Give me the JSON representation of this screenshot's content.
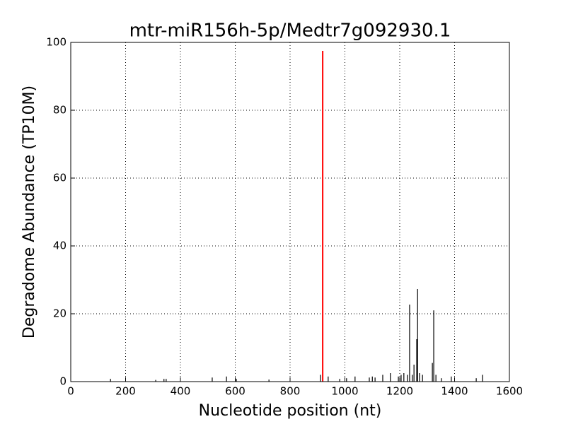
{
  "chart_data": {
    "type": "stem",
    "title": "mtr-miR156h-5p/Medtr7g092930.1",
    "x_label": "Nucleotide position (nt)",
    "y_label": "Degradome Abundance (TP10M)",
    "xlim": [
      0,
      1600
    ],
    "xticks": [
      0,
      200,
      400,
      600,
      800,
      1000,
      1200,
      1400,
      1600
    ],
    "ylim": [
      0,
      100
    ],
    "yticks": [
      0,
      20,
      40,
      60,
      80,
      100
    ],
    "grid": true,
    "series": [
      {
        "color": "#000000",
        "x": [
          145,
          310,
          340,
          348,
          516,
          568,
          604,
          723,
          911,
          939,
          981,
          1006,
          1037,
          1089,
          1100,
          1110,
          1138,
          1166,
          1195,
          1205,
          1215,
          1228,
          1236,
          1246,
          1252,
          1262,
          1265,
          1272,
          1283,
          1319,
          1324,
          1332,
          1352,
          1388,
          1479,
          1502
        ],
        "values": [
          0.8,
          0.5,
          0.8,
          0.8,
          1.2,
          1.5,
          0.8,
          0.6,
          2,
          1.5,
          0.8,
          1,
          1.5,
          1.2,
          1.5,
          1.2,
          2,
          2.5,
          1.5,
          2,
          2.5,
          2,
          22.7,
          2,
          5,
          12.5,
          27.3,
          2.5,
          2,
          5.5,
          21,
          2,
          1,
          1.5,
          1,
          2
        ]
      },
      {
        "color": "#ff0000",
        "x": [
          919
        ],
        "values": [
          97.5
        ]
      }
    ]
  }
}
